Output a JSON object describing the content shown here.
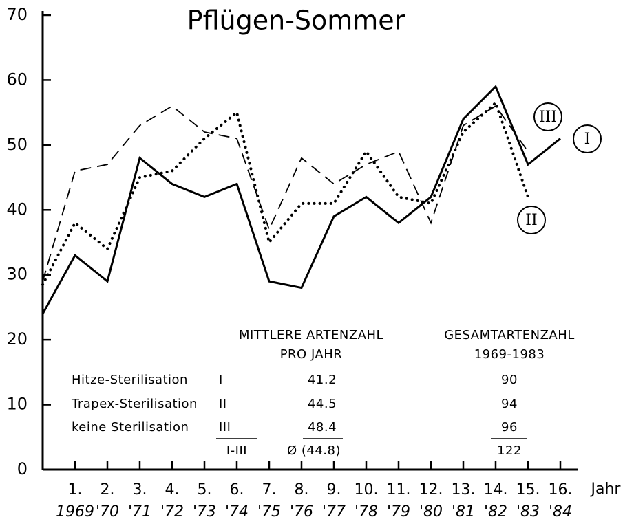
{
  "chart_data": {
    "type": "line",
    "title": "Pflügen-Sommer",
    "x_label": "Jahr",
    "x": [
      0,
      1,
      2,
      3,
      4,
      5,
      6,
      7,
      8,
      9,
      10,
      11,
      12,
      13,
      14,
      15,
      16
    ],
    "series": [
      {
        "name": "I",
        "color": "#000",
        "style": "solid",
        "values": [
          24,
          33,
          29,
          48,
          44,
          42,
          44,
          29,
          28,
          39,
          42,
          38,
          42,
          54,
          59,
          47,
          51
        ]
      },
      {
        "name": "II",
        "color": "#000",
        "style": "dotted",
        "values": [
          28.5,
          38,
          34,
          45,
          46,
          51,
          55,
          35,
          41,
          41,
          49,
          42,
          41,
          52,
          56.5,
          42,
          null
        ]
      },
      {
        "name": "III",
        "color": "#000",
        "style": "dashed",
        "values": [
          29,
          46,
          47,
          53,
          56,
          52,
          51,
          37,
          48,
          44,
          47,
          49,
          38,
          53,
          56,
          49,
          null
        ]
      }
    ],
    "xlim": [
      0,
      17
    ],
    "xticks": [
      {
        "value": 1,
        "label": "1."
      },
      {
        "value": 2,
        "label": "2."
      },
      {
        "value": 3,
        "label": "3."
      },
      {
        "value": 4,
        "label": "4."
      },
      {
        "value": 5,
        "label": "5."
      },
      {
        "value": 6,
        "label": "6."
      },
      {
        "value": 7,
        "label": "7."
      },
      {
        "value": 8,
        "label": "8."
      },
      {
        "value": 9,
        "label": "9."
      },
      {
        "value": 10,
        "label": "10."
      },
      {
        "value": 11,
        "label": "11."
      },
      {
        "value": 12,
        "label": "12."
      },
      {
        "value": 13,
        "label": "13."
      },
      {
        "value": 14,
        "label": "14."
      },
      {
        "value": 15,
        "label": "15."
      },
      {
        "value": 16,
        "label": "16."
      }
    ],
    "xtick_years": [
      "1969",
      "'70",
      "'71",
      "'72",
      "'73",
      "'74",
      "'75",
      "'76",
      "'77",
      "'78",
      "'79",
      "'80",
      "'81",
      "'82",
      "'83",
      "'84"
    ],
    "ylim": [
      0,
      70
    ],
    "yticks": [
      0,
      10,
      20,
      30,
      40,
      50,
      60,
      70
    ],
    "table": {
      "headers": [
        [
          "MITTLERE ARTENZAHL",
          "PRO JAHR"
        ],
        [
          "GESAMTARTENZAHL",
          "1969-1983"
        ]
      ],
      "rows": [
        [
          "Hitze-Sterilisation",
          "I",
          "41.2",
          "90"
        ],
        [
          "Trapex-Sterilisation",
          "II",
          "44.5",
          "94"
        ],
        [
          "keine Sterilisation",
          "III",
          "48.4",
          "96"
        ]
      ],
      "total": [
        "I-III",
        "Ø (44.8)",
        "122"
      ]
    }
  }
}
